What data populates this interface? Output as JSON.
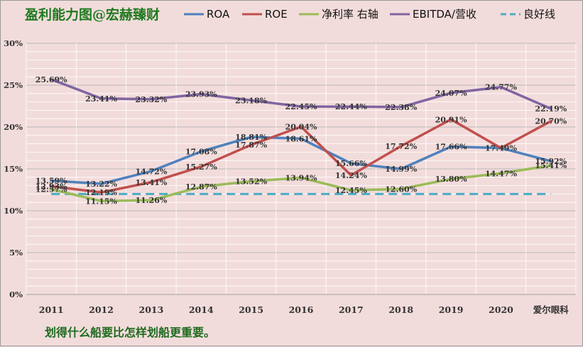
{
  "chart_data": {
    "type": "line",
    "title": "盈利能力图@宏赫臻财",
    "categories": [
      "2011",
      "2012",
      "2013",
      "2014",
      "2015",
      "2016",
      "2017",
      "2018",
      "2019",
      "2020",
      "爱尔眼科"
    ],
    "yticks": [
      "0%",
      "5%",
      "10%",
      "15%",
      "20%",
      "25%",
      "30%"
    ],
    "ylim": [
      0,
      30
    ],
    "grid": true,
    "legend_position": "top",
    "series": [
      {
        "name": "ROA",
        "color": "#4f81bd",
        "dashed": false,
        "values": [
          13.59,
          13.22,
          14.72,
          17.08,
          18.81,
          18.61,
          15.66,
          14.99,
          17.66,
          17.49,
          15.92
        ],
        "labels": [
          "13.59%",
          "13.22%",
          "14.72%",
          "17.08%",
          "18.81%",
          "18.61%",
          "15.66%",
          "14.99%",
          "17.66%",
          "17.49%",
          "15.92%"
        ]
      },
      {
        "name": "ROE",
        "color": "#c0504d",
        "dashed": false,
        "values": [
          12.93,
          12.19,
          13.41,
          15.27,
          17.87,
          20.04,
          14.24,
          17.72,
          20.91,
          17.49,
          20.7
        ],
        "labels": [
          "12.93%",
          "12.19%",
          "13.41%",
          "15.27%",
          "17.87%",
          "20.04%",
          "14.24%",
          "17.72%",
          "20.91%",
          "",
          "20.70%"
        ]
      },
      {
        "name": "净利率 右轴",
        "color": "#9bbb59",
        "dashed": false,
        "values": [
          12.57,
          11.15,
          11.26,
          12.87,
          13.52,
          13.94,
          12.45,
          12.6,
          13.8,
          14.47,
          15.41
        ],
        "labels": [
          "12.57%",
          "11.15%",
          "11.26%",
          "12.87%",
          "13.52%",
          "13.94%",
          "12.45%",
          "12.60%",
          "13.80%",
          "14.47%",
          "15.41%"
        ]
      },
      {
        "name": "EBITDA/营收",
        "color": "#8064a2",
        "dashed": false,
        "values": [
          25.69,
          23.41,
          23.32,
          23.93,
          23.18,
          22.45,
          22.44,
          22.38,
          24.07,
          24.77,
          22.19
        ],
        "labels": [
          "25.69%",
          "23.41%",
          "23.32%",
          "23.93%",
          "23.18%",
          "22.45%",
          "22.44%",
          "22.38%",
          "24.07%",
          "24.77%",
          "22.19%"
        ]
      },
      {
        "name": "良好线",
        "color": "#4bacc6",
        "dashed": true,
        "values": [
          12,
          12,
          12,
          12,
          12,
          12,
          12,
          12,
          12,
          12,
          12
        ],
        "labels": []
      }
    ]
  },
  "footnote": "划得什么船要比怎样划船更重要。"
}
